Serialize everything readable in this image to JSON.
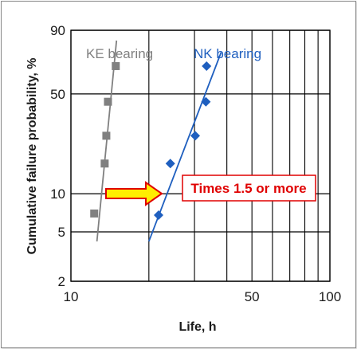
{
  "chart_data": {
    "type": "scatter",
    "title": "",
    "xlabel": "Life, h",
    "ylabel": "Cumulative failure probability, %",
    "x_scale": "log",
    "y_scale": "weibull",
    "xlim": [
      10,
      100
    ],
    "ylim": [
      2,
      90
    ],
    "x_ticks": [
      "10",
      "50",
      "100"
    ],
    "y_ticks": [
      "2",
      "5",
      "10",
      "50",
      "90"
    ],
    "grid": true,
    "series": [
      {
        "name": "KE bearing",
        "color": "#808080",
        "marker": "square",
        "points": [
          {
            "x": 12.3,
            "y": 7
          },
          {
            "x": 13.5,
            "y": 17
          },
          {
            "x": 13.7,
            "y": 27
          },
          {
            "x": 13.9,
            "y": 45
          },
          {
            "x": 14.9,
            "y": 69
          }
        ],
        "fit_line": {
          "from": {
            "x": 12.6,
            "y": 4.2
          },
          "to": {
            "x": 15.0,
            "y": 85
          }
        }
      },
      {
        "name": "NK bearing",
        "color": "#1f5fbf",
        "marker": "diamond",
        "points": [
          {
            "x": 21.8,
            "y": 6.8
          },
          {
            "x": 24.2,
            "y": 17
          },
          {
            "x": 30.2,
            "y": 27
          },
          {
            "x": 33.2,
            "y": 45
          },
          {
            "x": 33.4,
            "y": 69
          }
        ],
        "fit_line": {
          "from": {
            "x": 20.0,
            "y": 4.2
          },
          "to": {
            "x": 38.0,
            "y": 78
          }
        }
      }
    ],
    "annotation": {
      "text": "Times 1.5 or more",
      "text_color": "#e00000",
      "box_color": "#e00000",
      "arrow_fill": "#ffee00",
      "arrow_stroke": "#e00000"
    }
  }
}
